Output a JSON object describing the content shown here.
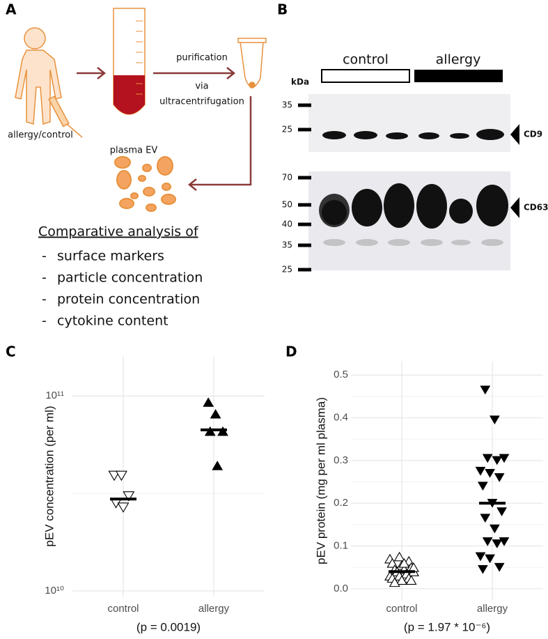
{
  "panels": {
    "a": {
      "label": "A",
      "steps": [
        "purification",
        "via",
        "ultracentrifugation"
      ],
      "subject": "allergy/control",
      "ev": "plasma EV",
      "analysis_title": "Comparative analysis of",
      "bullet": "-",
      "analysis_items": [
        "surface markers",
        "particle concentration",
        "protein concentration",
        "cytokine content"
      ]
    },
    "b": {
      "label": "B",
      "groups": [
        "control",
        "allergy"
      ],
      "unit": "kDa",
      "cd9_markers": [
        "35",
        "25"
      ],
      "cd63_markers": [
        "70",
        "50",
        "40",
        "35",
        "25"
      ],
      "targets": [
        "CD9",
        "CD63"
      ]
    },
    "c": {
      "label": "C"
    },
    "d": {
      "label": "D"
    }
  },
  "chart_data": [
    {
      "type": "strip",
      "ylabel": "pEV concentration (per ml)",
      "categories": [
        "control",
        "allergy"
      ],
      "caption": "(p = 0.0019)",
      "log_y": true,
      "ylim": [
        10000000000,
        150000000000
      ],
      "yticks": [
        {
          "value": 10000000000,
          "label": "10¹⁰"
        },
        {
          "value": 100000000000,
          "label": "10¹¹"
        }
      ],
      "y_minor_grid": [
        31600000000
      ],
      "grid": true,
      "markers": [
        "triangle-down-open",
        "triangle-up-filled"
      ],
      "color": "#000000",
      "values": [
        [
          39000000000,
          39000000000,
          30600000000,
          28200000000,
          26800000000
        ],
        [
          93000000000,
          81000000000,
          66000000000,
          66000000000,
          44000000000
        ]
      ],
      "medians": [
        29600000000,
        67000000000
      ]
    },
    {
      "type": "strip",
      "ylabel": "pEV protein (mg per ml plasma)",
      "categories": [
        "control",
        "allergy"
      ],
      "caption": "(p = 1.97 * 10⁻⁶)",
      "log_y": false,
      "ylim": [
        -0.015,
        0.52
      ],
      "yticks": [
        {
          "value": 0,
          "label": "0.0"
        },
        0.1,
        0.2,
        0.3,
        0.4,
        0.5
      ],
      "y_minor_grid": [
        0.05,
        0.15,
        0.25,
        0.35,
        0.45
      ],
      "grid": true,
      "markers": [
        "triangle-up-open",
        "triangle-down-filled"
      ],
      "color": "#000000",
      "values": [
        [
          0.07,
          0.075,
          0.065,
          0.06,
          0.055,
          0.05,
          0.045,
          0.045,
          0.04,
          0.04,
          0.035,
          0.03,
          0.03,
          0.025,
          0.025,
          0.02,
          0.02,
          0.015,
          0.06,
          0.05
        ],
        [
          0.465,
          0.395,
          0.305,
          0.305,
          0.3,
          0.275,
          0.27,
          0.26,
          0.24,
          0.2,
          0.18,
          0.165,
          0.14,
          0.11,
          0.11,
          0.105,
          0.075,
          0.07,
          0.05,
          0.045
        ]
      ],
      "medians": [
        0.04,
        0.2
      ]
    }
  ]
}
